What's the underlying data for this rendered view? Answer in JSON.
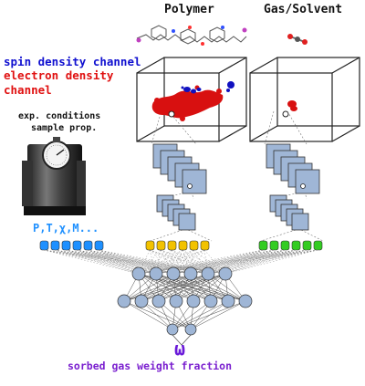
{
  "header": {
    "polymer": "Polymer",
    "gas": "Gas/Solvent"
  },
  "channels": {
    "spin": "spin density channel",
    "electron_line1": "electron density",
    "electron_line2": "channel"
  },
  "conditions": {
    "line1": "exp. conditions",
    "line2": "sample prop.",
    "params": "P,T,χ,M..."
  },
  "output": {
    "symbol": "ω",
    "label": "sorbed gas weight fraction"
  },
  "colors": {
    "spin": "#1010d0",
    "electron": "#e01010",
    "params_blue": "#1e90ff",
    "node_yellow": "#f2c200",
    "node_green": "#33cc22",
    "node_gray": "#9fb6d6",
    "omega": "#6a1ad9",
    "label_purple": "#7a1fcf"
  },
  "icons": [
    "pressure-gauge-icon",
    "polymer-molecule-icon",
    "gas-molecule-icon"
  ]
}
